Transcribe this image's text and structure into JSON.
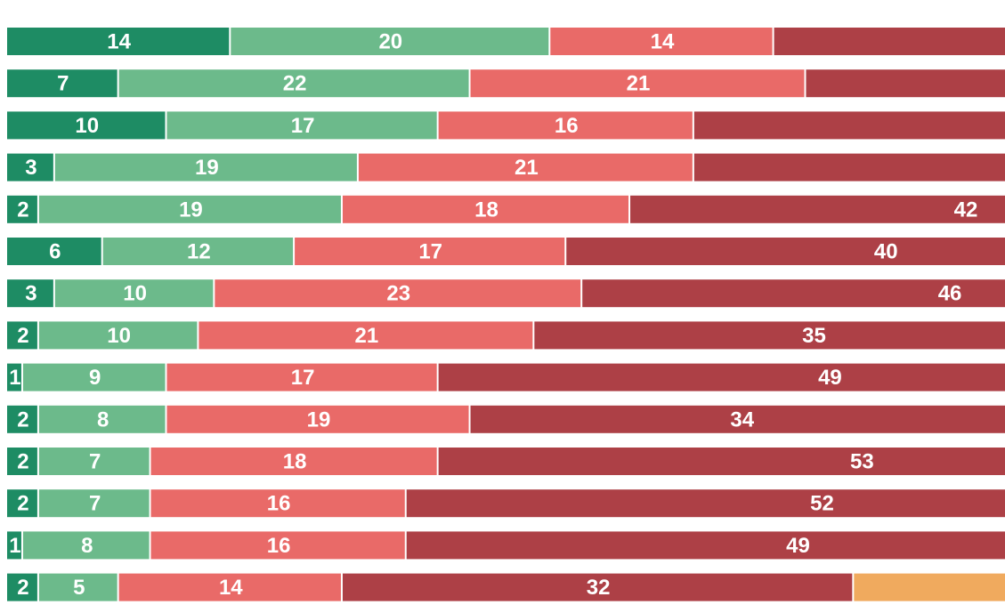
{
  "chart_data": {
    "type": "bar",
    "orientation": "horizontal",
    "stacked": true,
    "title": "",
    "xlabel": "",
    "ylabel": "",
    "units_per_segment": "percent",
    "categories": [
      "",
      "",
      "",
      "",
      "",
      "",
      "",
      "",
      "",
      "",
      "",
      "",
      "",
      ""
    ],
    "series": [
      {
        "color": "#1e8c64",
        "values": [
          14,
          7,
          10,
          3,
          2,
          6,
          3,
          2,
          1,
          2,
          2,
          2,
          1,
          2
        ]
      },
      {
        "color": "#6cba8b",
        "values": [
          20,
          22,
          17,
          19,
          19,
          12,
          10,
          10,
          9,
          8,
          7,
          7,
          8,
          5
        ]
      },
      {
        "color": "#e96a68",
        "values": [
          14,
          21,
          16,
          21,
          18,
          17,
          23,
          21,
          17,
          19,
          18,
          16,
          16,
          14
        ]
      },
      {
        "color": "#ad4046",
        "values": [
          null,
          null,
          null,
          null,
          42,
          40,
          46,
          35,
          49,
          34,
          53,
          52,
          49,
          32
        ]
      },
      {
        "color": "#f0aa5e",
        "values": [
          null,
          null,
          null,
          null,
          null,
          null,
          null,
          null,
          null,
          null,
          null,
          null,
          null,
          null
        ]
      }
    ],
    "visible_labels": [
      [
        "14",
        "20",
        "14",
        ""
      ],
      [
        "7",
        "22",
        "21",
        ""
      ],
      [
        "10",
        "17",
        "16",
        ""
      ],
      [
        "3",
        "19",
        "21",
        ""
      ],
      [
        "2",
        "19",
        "18",
        "42"
      ],
      [
        "6",
        "12",
        "17",
        "40"
      ],
      [
        "3",
        "10",
        "23",
        "46"
      ],
      [
        "2",
        "10",
        "21",
        "35"
      ],
      [
        "1",
        "9",
        "17",
        "49"
      ],
      [
        "2",
        "8",
        "19",
        "34"
      ],
      [
        "2",
        "7",
        "18",
        "53"
      ],
      [
        "2",
        "7",
        "16",
        "52"
      ],
      [
        "1",
        "8",
        "16",
        "49"
      ],
      [
        "2",
        "5",
        "14",
        "32"
      ]
    ],
    "grid": false,
    "legend": "none"
  }
}
